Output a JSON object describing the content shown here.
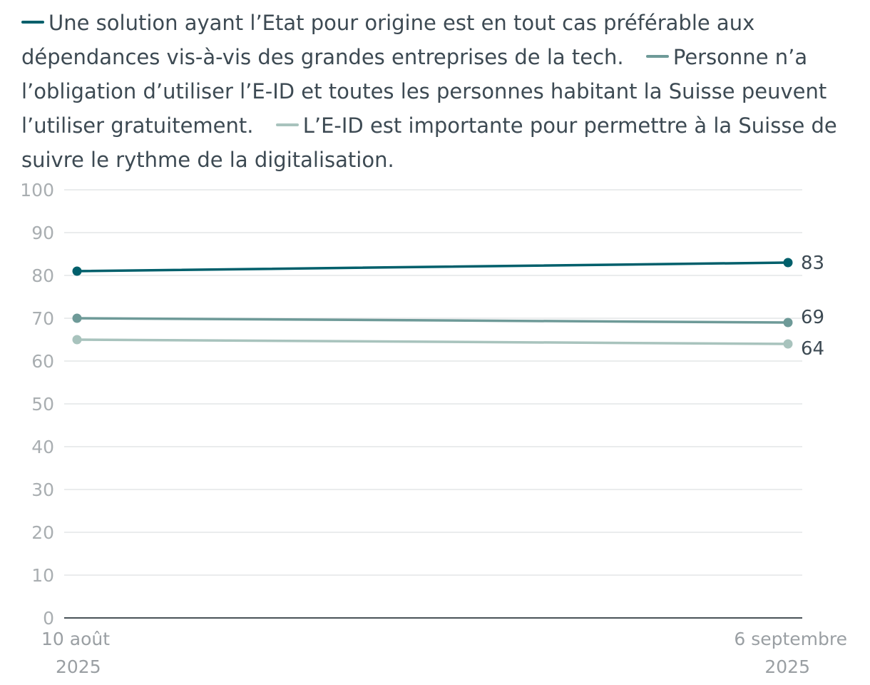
{
  "chart_data": {
    "type": "line",
    "x": [
      {
        "line1": "10 août",
        "line2": "2025"
      },
      {
        "line1": "6 septembre",
        "line2": "2025"
      }
    ],
    "ylim": [
      0,
      100
    ],
    "yticks": [
      "0",
      "10",
      "20",
      "30",
      "40",
      "50",
      "60",
      "70",
      "80",
      "90",
      "100"
    ],
    "grid": true,
    "legend_position": "top",
    "series": [
      {
        "name": "Une solution ayant l’Etat pour origine est en tout cas préférable aux dépendances vis-à-vis des grandes entreprises de la tech.",
        "values": [
          81,
          83
        ],
        "end_label": "83",
        "color": "#005f6b"
      },
      {
        "name": "Personne n’a l’obligation d’utiliser l’E-ID et toutes les personnes habitant la Suisse peuvent l’utiliser gratuitement.",
        "values": [
          70,
          69
        ],
        "end_label": "69",
        "color": "#6e9a98"
      },
      {
        "name": "L’E-ID est importante pour permettre à la Suisse de suivre le rythme de la digitalisation.",
        "values": [
          65,
          64
        ],
        "end_label": "64",
        "color": "#a8c3bd"
      }
    ]
  }
}
